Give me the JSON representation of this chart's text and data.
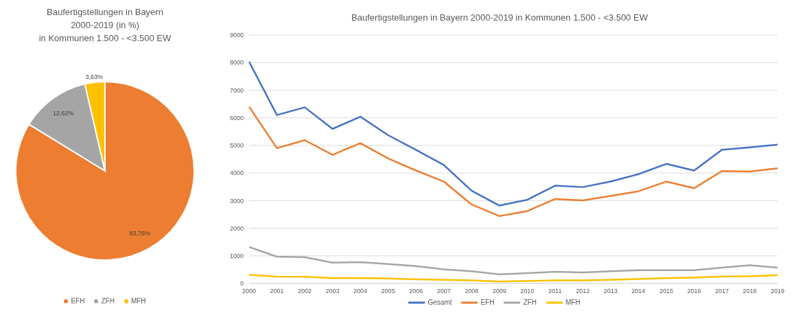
{
  "chart_data": [
    {
      "type": "pie",
      "title": "Baufertigstellungen in Bayern\n2000-2019 (in %)\nin Kommunen 1.500 - <3.500 EW",
      "categories": [
        "EFH",
        "ZFH",
        "MFH"
      ],
      "values": [
        83.76,
        12.62,
        3.63
      ],
      "colors": [
        "#ed7d31",
        "#a5a5a5",
        "#ffc000"
      ],
      "value_labels": [
        "83,76%",
        "12,62%",
        "3,63%"
      ],
      "legend": "bottom"
    },
    {
      "type": "line",
      "title": "Baufertigstellungen in Bayern 2000-2019 in Kommunen 1.500 - <3.500 EW",
      "categories": [
        "2000",
        "2001",
        "2002",
        "2003",
        "2004",
        "2005",
        "2006",
        "2007",
        "2008",
        "2009",
        "2010",
        "2011",
        "2012",
        "2013",
        "2014",
        "2015",
        "2016",
        "2017",
        "2018",
        "2019"
      ],
      "series": [
        {
          "name": "Gesamt",
          "color": "#4472c4",
          "values": [
            8030,
            6100,
            6380,
            5600,
            6040,
            5370,
            4840,
            4290,
            3360,
            2820,
            3030,
            3540,
            3490,
            3690,
            3960,
            4330,
            4090,
            4840,
            4930,
            5030
          ]
        },
        {
          "name": "EFH",
          "color": "#ed7d31",
          "values": [
            6400,
            4900,
            5190,
            4660,
            5080,
            4530,
            4090,
            3690,
            2860,
            2440,
            2620,
            3060,
            3010,
            3170,
            3340,
            3690,
            3450,
            4070,
            4050,
            4170
          ]
        },
        {
          "name": "ZFH",
          "color": "#a5a5a5",
          "values": [
            1320,
            970,
            950,
            750,
            770,
            700,
            630,
            510,
            440,
            330,
            370,
            420,
            400,
            440,
            480,
            480,
            480,
            570,
            660,
            570
          ]
        },
        {
          "name": "MFH",
          "color": "#ffc000",
          "values": [
            310,
            250,
            240,
            190,
            190,
            180,
            150,
            130,
            110,
            70,
            90,
            110,
            110,
            130,
            160,
            190,
            210,
            250,
            260,
            300
          ]
        }
      ],
      "ylim": [
        0,
        9000
      ],
      "yticks": [
        0,
        1000,
        2000,
        3000,
        4000,
        5000,
        6000,
        7000,
        8000,
        9000
      ],
      "grid": "y",
      "legend": "bottom",
      "marker": "none",
      "line_style": "solid"
    }
  ]
}
